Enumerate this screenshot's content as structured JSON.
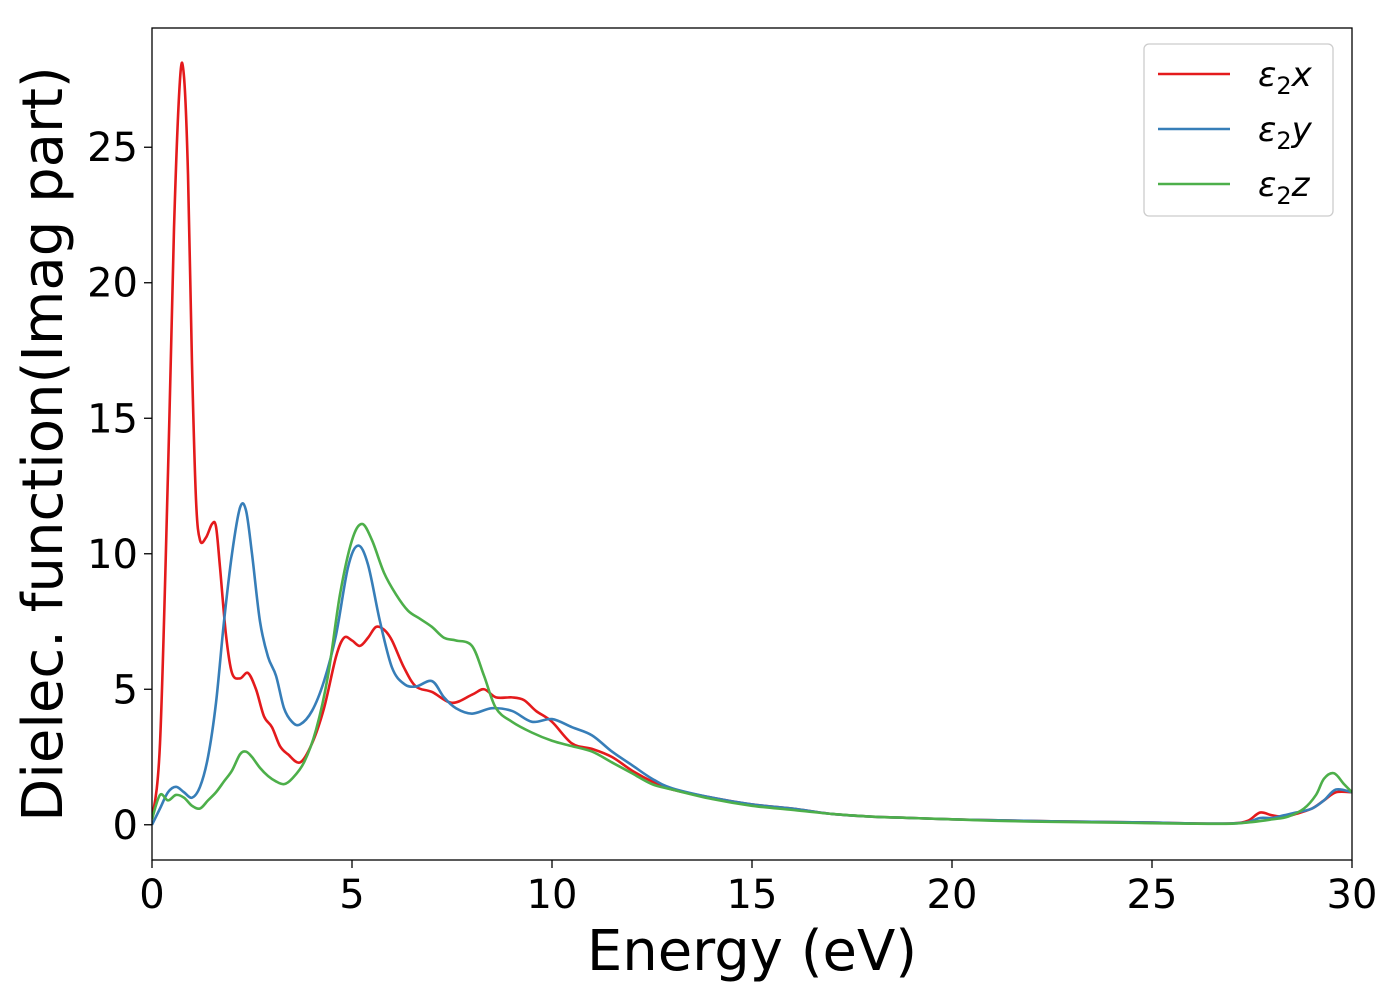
{
  "chart_data": {
    "type": "line",
    "title": "",
    "xlabel": "Energy (eV)",
    "ylabel": "Dielec. function(Imag part)",
    "xlim": [
      0,
      30
    ],
    "ylim": [
      -1.3,
      29.4
    ],
    "xticks": [
      0,
      5,
      10,
      15,
      20,
      25,
      30
    ],
    "xtick_labels": [
      "0",
      "5",
      "10",
      "15",
      "20",
      "25",
      "30"
    ],
    "yticks": [
      0,
      5,
      10,
      15,
      20,
      25
    ],
    "ytick_labels": [
      "0",
      "5",
      "10",
      "15",
      "20",
      "25"
    ],
    "grid": false,
    "legend_position": "top-right",
    "series": [
      {
        "name": "ε₂x",
        "legend_base": "ε",
        "legend_sub": "2",
        "legend_suffix": "x",
        "color": "#e41a1c",
        "x": [
          0,
          0.2,
          0.4,
          0.55,
          0.7,
          0.8,
          0.9,
          1.0,
          1.1,
          1.2,
          1.35,
          1.5,
          1.6,
          1.7,
          1.85,
          2.0,
          2.2,
          2.4,
          2.6,
          2.8,
          3.0,
          3.2,
          3.4,
          3.7,
          4.0,
          4.3,
          4.6,
          4.8,
          5.0,
          5.2,
          5.4,
          5.6,
          5.8,
          6.0,
          6.3,
          6.6,
          7.0,
          7.5,
          8.0,
          8.3,
          8.6,
          9.0,
          9.3,
          9.6,
          10.0,
          10.5,
          11.0,
          11.5,
          12.0,
          12.5,
          13.0,
          14.0,
          15.0,
          16.0,
          17.0,
          18.0,
          19.0,
          20.0,
          21.0,
          22.0,
          23.0,
          24.0,
          25.0,
          26.0,
          27.0,
          27.4,
          27.7,
          28.0,
          28.3,
          28.6,
          29.0,
          29.3,
          29.6,
          30.0
        ],
        "values": [
          0.2,
          3.0,
          13.0,
          22.0,
          27.5,
          27.6,
          24.0,
          17.0,
          12.0,
          10.5,
          10.6,
          11.1,
          11.0,
          9.5,
          7.0,
          5.6,
          5.4,
          5.6,
          5.0,
          4.0,
          3.6,
          2.9,
          2.6,
          2.3,
          3.0,
          4.3,
          6.2,
          6.9,
          6.8,
          6.6,
          6.9,
          7.3,
          7.2,
          6.8,
          5.8,
          5.1,
          4.9,
          4.5,
          4.8,
          5.0,
          4.7,
          4.7,
          4.6,
          4.2,
          3.8,
          3.0,
          2.8,
          2.5,
          2.0,
          1.6,
          1.3,
          1.0,
          0.75,
          0.6,
          0.4,
          0.3,
          0.25,
          0.2,
          0.17,
          0.14,
          0.12,
          0.1,
          0.08,
          0.05,
          0.05,
          0.15,
          0.45,
          0.35,
          0.3,
          0.4,
          0.6,
          0.9,
          1.2,
          1.2
        ]
      },
      {
        "name": "ε₂y",
        "legend_base": "ε",
        "legend_sub": "2",
        "legend_suffix": "y",
        "color": "#377eb8",
        "x": [
          0,
          0.2,
          0.4,
          0.6,
          0.8,
          1.0,
          1.2,
          1.4,
          1.6,
          1.8,
          2.0,
          2.2,
          2.35,
          2.5,
          2.7,
          2.9,
          3.1,
          3.3,
          3.5,
          3.7,
          4.0,
          4.3,
          4.6,
          4.9,
          5.15,
          5.4,
          5.7,
          6.0,
          6.3,
          6.6,
          7.0,
          7.3,
          7.6,
          8.0,
          8.5,
          9.0,
          9.5,
          10.0,
          10.5,
          11.0,
          11.5,
          12.0,
          12.5,
          13.0,
          14.0,
          15.0,
          16.0,
          17.0,
          18.0,
          19.0,
          20.0,
          21.0,
          22.0,
          23.0,
          24.0,
          25.0,
          26.0,
          27.0,
          27.4,
          27.7,
          28.0,
          28.3,
          28.6,
          29.0,
          29.3,
          29.6,
          30.0
        ],
        "values": [
          0.0,
          0.6,
          1.2,
          1.4,
          1.2,
          1.0,
          1.4,
          2.5,
          4.5,
          7.5,
          10.0,
          11.7,
          11.6,
          10.0,
          7.5,
          6.2,
          5.5,
          4.3,
          3.8,
          3.7,
          4.2,
          5.3,
          7.0,
          9.5,
          10.3,
          9.6,
          7.5,
          5.8,
          5.2,
          5.1,
          5.3,
          4.7,
          4.3,
          4.1,
          4.3,
          4.2,
          3.8,
          3.9,
          3.6,
          3.3,
          2.7,
          2.2,
          1.7,
          1.35,
          1.0,
          0.75,
          0.6,
          0.4,
          0.3,
          0.25,
          0.2,
          0.17,
          0.14,
          0.12,
          0.1,
          0.08,
          0.05,
          0.05,
          0.1,
          0.25,
          0.25,
          0.35,
          0.45,
          0.6,
          0.9,
          1.3,
          1.2
        ]
      },
      {
        "name": "ε₂z",
        "legend_base": "ε",
        "legend_sub": "2",
        "legend_suffix": "z",
        "color": "#4daf4a",
        "x": [
          0,
          0.2,
          0.4,
          0.6,
          0.8,
          1.0,
          1.2,
          1.4,
          1.6,
          1.8,
          2.0,
          2.2,
          2.35,
          2.5,
          2.7,
          2.9,
          3.1,
          3.3,
          3.5,
          3.8,
          4.1,
          4.4,
          4.7,
          5.0,
          5.25,
          5.5,
          5.8,
          6.1,
          6.4,
          6.7,
          7.0,
          7.3,
          7.6,
          8.0,
          8.3,
          8.6,
          9.0,
          9.5,
          10.0,
          10.5,
          11.0,
          11.5,
          12.0,
          12.5,
          13.0,
          14.0,
          15.0,
          16.0,
          17.0,
          18.0,
          19.0,
          20.0,
          21.0,
          22.0,
          23.0,
          24.0,
          25.0,
          26.0,
          27.0,
          27.5,
          28.0,
          28.4,
          28.8,
          29.1,
          29.3,
          29.55,
          29.8,
          30.0
        ],
        "values": [
          0.2,
          1.1,
          0.9,
          1.1,
          1.0,
          0.7,
          0.6,
          0.9,
          1.2,
          1.6,
          2.0,
          2.6,
          2.7,
          2.5,
          2.1,
          1.8,
          1.6,
          1.5,
          1.7,
          2.3,
          3.5,
          5.5,
          8.5,
          10.5,
          11.1,
          10.5,
          9.3,
          8.5,
          7.9,
          7.6,
          7.3,
          6.9,
          6.8,
          6.6,
          5.5,
          4.3,
          3.8,
          3.4,
          3.1,
          2.9,
          2.7,
          2.3,
          1.9,
          1.5,
          1.3,
          0.95,
          0.7,
          0.55,
          0.4,
          0.3,
          0.25,
          0.2,
          0.15,
          0.12,
          0.1,
          0.08,
          0.06,
          0.04,
          0.04,
          0.1,
          0.2,
          0.3,
          0.6,
          1.1,
          1.7,
          1.9,
          1.5,
          1.2
        ]
      }
    ]
  }
}
